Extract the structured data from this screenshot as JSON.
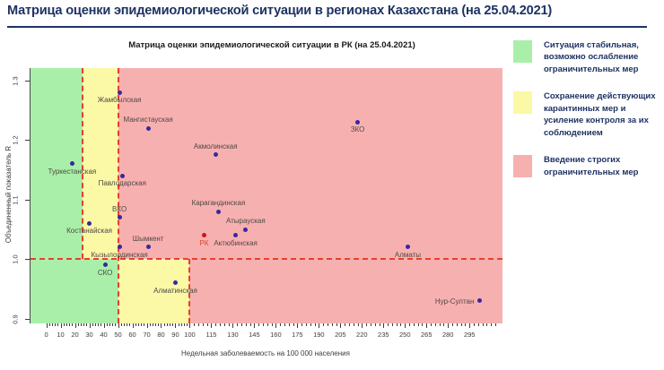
{
  "page": {
    "title": "Матрица оценки эпидемиологической ситуации в регионах Казахстана (на 25.04.2021)"
  },
  "legend": {
    "items": [
      {
        "id": "stable",
        "color": "#a9efa9",
        "text": "Ситуация стабильная, возможно ослабление ограничительных мер"
      },
      {
        "id": "keep-measures",
        "color": "#fbf8a6",
        "text": "Сохранение действующих карантинных мер и усиление контроля за их соблюдением"
      },
      {
        "id": "strict-measures",
        "color": "#f7b0b0",
        "text": "Введение строгих ограничительных мер"
      }
    ]
  },
  "chart_data": {
    "type": "scatter",
    "title": "Матрица оценки эпидемиологической ситуации в РК (на 25.04.2021)",
    "xlabel": "Недельная заболеваемость на 100 000 населения",
    "ylabel": "Объединенный показатель R",
    "xlim": [
      -11,
      318
    ],
    "ylim": [
      0.892,
      1.321
    ],
    "x_ticks": [
      0,
      10,
      20,
      30,
      40,
      50,
      60,
      70,
      80,
      90,
      100,
      115,
      130,
      145,
      160,
      175,
      190,
      205,
      220,
      235,
      250,
      265,
      280,
      295
    ],
    "x_minor_step_below_100": 2,
    "x_minor_step_above_100": 3,
    "x_minor_max": 315,
    "y_ticks": [
      0.9,
      1.0,
      1.1,
      1.2,
      1.3
    ],
    "threshold_r": 1.0,
    "zones": [
      {
        "color": "pink",
        "x0": -11,
        "x1": 318,
        "y0": 0.892,
        "y1": 1.321
      },
      {
        "color": "green",
        "x0": -11,
        "x1": 25,
        "y0": 1.0,
        "y1": 1.321
      },
      {
        "color": "yellow",
        "x0": 25,
        "x1": 50,
        "y0": 1.0,
        "y1": 1.321
      },
      {
        "color": "green",
        "x0": -11,
        "x1": 50,
        "y0": 0.892,
        "y1": 1.0
      },
      {
        "color": "yellow",
        "x0": 50,
        "x1": 100,
        "y0": 0.892,
        "y1": 1.0
      }
    ],
    "guides": [
      {
        "type": "h",
        "y": 1.0,
        "x0": -11,
        "x1": 318
      },
      {
        "type": "v",
        "x": 25,
        "y0": 1.0,
        "y1": 1.321
      },
      {
        "type": "v",
        "x": 50,
        "y0": 0.892,
        "y1": 1.321
      },
      {
        "type": "v",
        "x": 100,
        "y0": 0.892,
        "y1": 1.0
      }
    ],
    "points": [
      {
        "id": "zhambylskaya",
        "name": "Жамбылская",
        "x": 51,
        "y": 1.28,
        "label_pos": "below",
        "series": "region"
      },
      {
        "id": "mangystauskaya",
        "name": "Мангистауская",
        "x": 71,
        "y": 1.22,
        "label_pos": "above",
        "series": "region"
      },
      {
        "id": "zko",
        "name": "ЗКО",
        "x": 217,
        "y": 1.23,
        "label_pos": "below",
        "series": "region"
      },
      {
        "id": "akmolinskaya",
        "name": "Акмолинская",
        "x": 118,
        "y": 1.175,
        "label_pos": "above",
        "series": "region"
      },
      {
        "id": "turkestanskaya",
        "name": "Туркестанская",
        "x": 18,
        "y": 1.16,
        "label_pos": "below",
        "series": "region"
      },
      {
        "id": "pavlodarskaya",
        "name": "Павлодарская",
        "x": 53,
        "y": 1.14,
        "label_pos": "below",
        "series": "region"
      },
      {
        "id": "karagandinskaya",
        "name": "Карагандинская",
        "x": 120,
        "y": 1.08,
        "label_pos": "above",
        "series": "region"
      },
      {
        "id": "vko",
        "name": "ВКО",
        "x": 51,
        "y": 1.07,
        "label_pos": "above",
        "series": "region"
      },
      {
        "id": "kostanayskaya",
        "name": "Костанайская",
        "x": 30,
        "y": 1.06,
        "label_pos": "below",
        "series": "region"
      },
      {
        "id": "atyrauskaya",
        "name": "Атырауская",
        "x": 139,
        "y": 1.05,
        "label_pos": "above",
        "series": "region"
      },
      {
        "id": "rk",
        "name": "РК",
        "x": 110,
        "y": 1.04,
        "label_pos": "below",
        "series": "rk"
      },
      {
        "id": "aktyubinskaya",
        "name": "Актюбинская",
        "x": 132,
        "y": 1.04,
        "label_pos": "below",
        "series": "region"
      },
      {
        "id": "shymkent",
        "name": "Шымкент",
        "x": 71,
        "y": 1.02,
        "label_pos": "above",
        "series": "region"
      },
      {
        "id": "kyzylordinskaya",
        "name": "Кызылординская",
        "x": 51,
        "y": 1.02,
        "label_pos": "below",
        "series": "region"
      },
      {
        "id": "almaty",
        "name": "Алматы",
        "x": 252,
        "y": 1.02,
        "label_pos": "below",
        "series": "region"
      },
      {
        "id": "sko",
        "name": "СКО",
        "x": 41,
        "y": 0.99,
        "label_pos": "below",
        "series": "region"
      },
      {
        "id": "almatinskaya",
        "name": "Алматинская",
        "x": 90,
        "y": 0.96,
        "label_pos": "below",
        "series": "region"
      },
      {
        "id": "nur-sultan",
        "name": "Нур-Султан",
        "x": 302,
        "y": 0.93,
        "label_pos": "left",
        "series": "region"
      }
    ],
    "colors": {
      "zone_green": "#a9efa9",
      "zone_yellow": "#fbf8a6",
      "zone_pink": "#f7b0b0",
      "dash": "#e8402a",
      "point": "#38289e",
      "point_rk": "#cc1616",
      "label": "#4e4943",
      "label_rk": "#d2492f"
    }
  }
}
